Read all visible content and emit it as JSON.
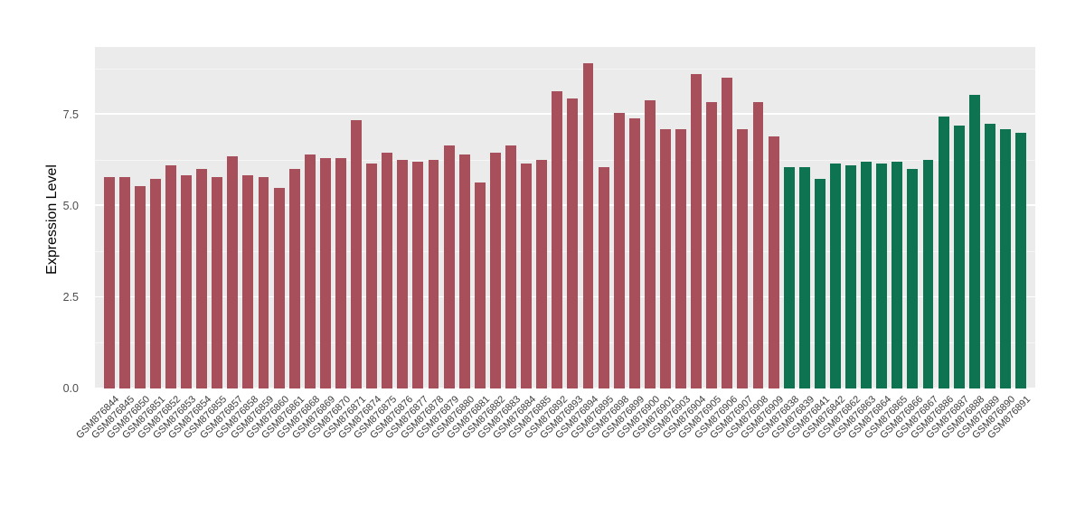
{
  "chart_data": {
    "type": "bar",
    "title": "",
    "xlabel": "",
    "ylabel": "Expression Level",
    "ylim": [
      0,
      9.35
    ],
    "yticks": [
      0.0,
      2.5,
      5.0,
      7.5
    ],
    "ytick_labels": [
      "0.0",
      "2.5",
      "5.0",
      "7.5"
    ],
    "yticks_minor": [
      1.25,
      3.75,
      6.25,
      8.75
    ],
    "grid": true,
    "legend": "none",
    "panel_bg": "#EBEBEB",
    "colors": {
      "group1": "#A84F5C",
      "group2": "#0D7351"
    },
    "bars": [
      {
        "label": "GSM876844",
        "value": 5.8,
        "group": "group1"
      },
      {
        "label": "GSM876845",
        "value": 5.8,
        "group": "group1"
      },
      {
        "label": "GSM876850",
        "value": 5.55,
        "group": "group1"
      },
      {
        "label": "GSM876851",
        "value": 5.75,
        "group": "group1"
      },
      {
        "label": "GSM876852",
        "value": 6.1,
        "group": "group1"
      },
      {
        "label": "GSM876853",
        "value": 5.85,
        "group": "group1"
      },
      {
        "label": "GSM876854",
        "value": 6.0,
        "group": "group1"
      },
      {
        "label": "GSM876855",
        "value": 5.8,
        "group": "group1"
      },
      {
        "label": "GSM876857",
        "value": 6.35,
        "group": "group1"
      },
      {
        "label": "GSM876858",
        "value": 5.85,
        "group": "group1"
      },
      {
        "label": "GSM876859",
        "value": 5.8,
        "group": "group1"
      },
      {
        "label": "GSM876860",
        "value": 5.5,
        "group": "group1"
      },
      {
        "label": "GSM876861",
        "value": 6.0,
        "group": "group1"
      },
      {
        "label": "GSM876868",
        "value": 6.4,
        "group": "group1"
      },
      {
        "label": "GSM876869",
        "value": 6.3,
        "group": "group1"
      },
      {
        "label": "GSM876870",
        "value": 6.3,
        "group": "group1"
      },
      {
        "label": "GSM876871",
        "value": 7.35,
        "group": "group1"
      },
      {
        "label": "GSM876874",
        "value": 6.15,
        "group": "group1"
      },
      {
        "label": "GSM876875",
        "value": 6.45,
        "group": "group1"
      },
      {
        "label": "GSM876876",
        "value": 6.25,
        "group": "group1"
      },
      {
        "label": "GSM876877",
        "value": 6.2,
        "group": "group1"
      },
      {
        "label": "GSM876878",
        "value": 6.25,
        "group": "group1"
      },
      {
        "label": "GSM876879",
        "value": 6.65,
        "group": "group1"
      },
      {
        "label": "GSM876880",
        "value": 6.4,
        "group": "group1"
      },
      {
        "label": "GSM876881",
        "value": 5.65,
        "group": "group1"
      },
      {
        "label": "GSM876882",
        "value": 6.45,
        "group": "group1"
      },
      {
        "label": "GSM876883",
        "value": 6.65,
        "group": "group1"
      },
      {
        "label": "GSM876884",
        "value": 6.15,
        "group": "group1"
      },
      {
        "label": "GSM876885",
        "value": 6.25,
        "group": "group1"
      },
      {
        "label": "GSM876892",
        "value": 8.15,
        "group": "group1"
      },
      {
        "label": "GSM876893",
        "value": 7.95,
        "group": "group1"
      },
      {
        "label": "GSM876894",
        "value": 8.9,
        "group": "group1"
      },
      {
        "label": "GSM876895",
        "value": 6.05,
        "group": "group1"
      },
      {
        "label": "GSM876898",
        "value": 7.55,
        "group": "group1"
      },
      {
        "label": "GSM876899",
        "value": 7.4,
        "group": "group1"
      },
      {
        "label": "GSM876900",
        "value": 7.9,
        "group": "group1"
      },
      {
        "label": "GSM876901",
        "value": 7.1,
        "group": "group1"
      },
      {
        "label": "GSM876903",
        "value": 7.1,
        "group": "group1"
      },
      {
        "label": "GSM876904",
        "value": 8.6,
        "group": "group1"
      },
      {
        "label": "GSM876905",
        "value": 7.85,
        "group": "group1"
      },
      {
        "label": "GSM876906",
        "value": 8.5,
        "group": "group1"
      },
      {
        "label": "GSM876907",
        "value": 7.1,
        "group": "group1"
      },
      {
        "label": "GSM876908",
        "value": 7.85,
        "group": "group1"
      },
      {
        "label": "GSM876909",
        "value": 6.9,
        "group": "group1"
      },
      {
        "label": "GSM876838",
        "value": 6.05,
        "group": "group2"
      },
      {
        "label": "GSM876839",
        "value": 6.05,
        "group": "group2"
      },
      {
        "label": "GSM876841",
        "value": 5.75,
        "group": "group2"
      },
      {
        "label": "GSM876842",
        "value": 6.15,
        "group": "group2"
      },
      {
        "label": "GSM876862",
        "value": 6.1,
        "group": "group2"
      },
      {
        "label": "GSM876863",
        "value": 6.2,
        "group": "group2"
      },
      {
        "label": "GSM876864",
        "value": 6.15,
        "group": "group2"
      },
      {
        "label": "GSM876865",
        "value": 6.2,
        "group": "group2"
      },
      {
        "label": "GSM876866",
        "value": 6.0,
        "group": "group2"
      },
      {
        "label": "GSM876867",
        "value": 6.25,
        "group": "group2"
      },
      {
        "label": "GSM876886",
        "value": 7.45,
        "group": "group2"
      },
      {
        "label": "GSM876887",
        "value": 7.2,
        "group": "group2"
      },
      {
        "label": "GSM876888",
        "value": 8.05,
        "group": "group2"
      },
      {
        "label": "GSM876889",
        "value": 7.25,
        "group": "group2"
      },
      {
        "label": "GSM876890",
        "value": 7.1,
        "group": "group2"
      },
      {
        "label": "GSM876891",
        "value": 7.0,
        "group": "group2"
      }
    ]
  }
}
